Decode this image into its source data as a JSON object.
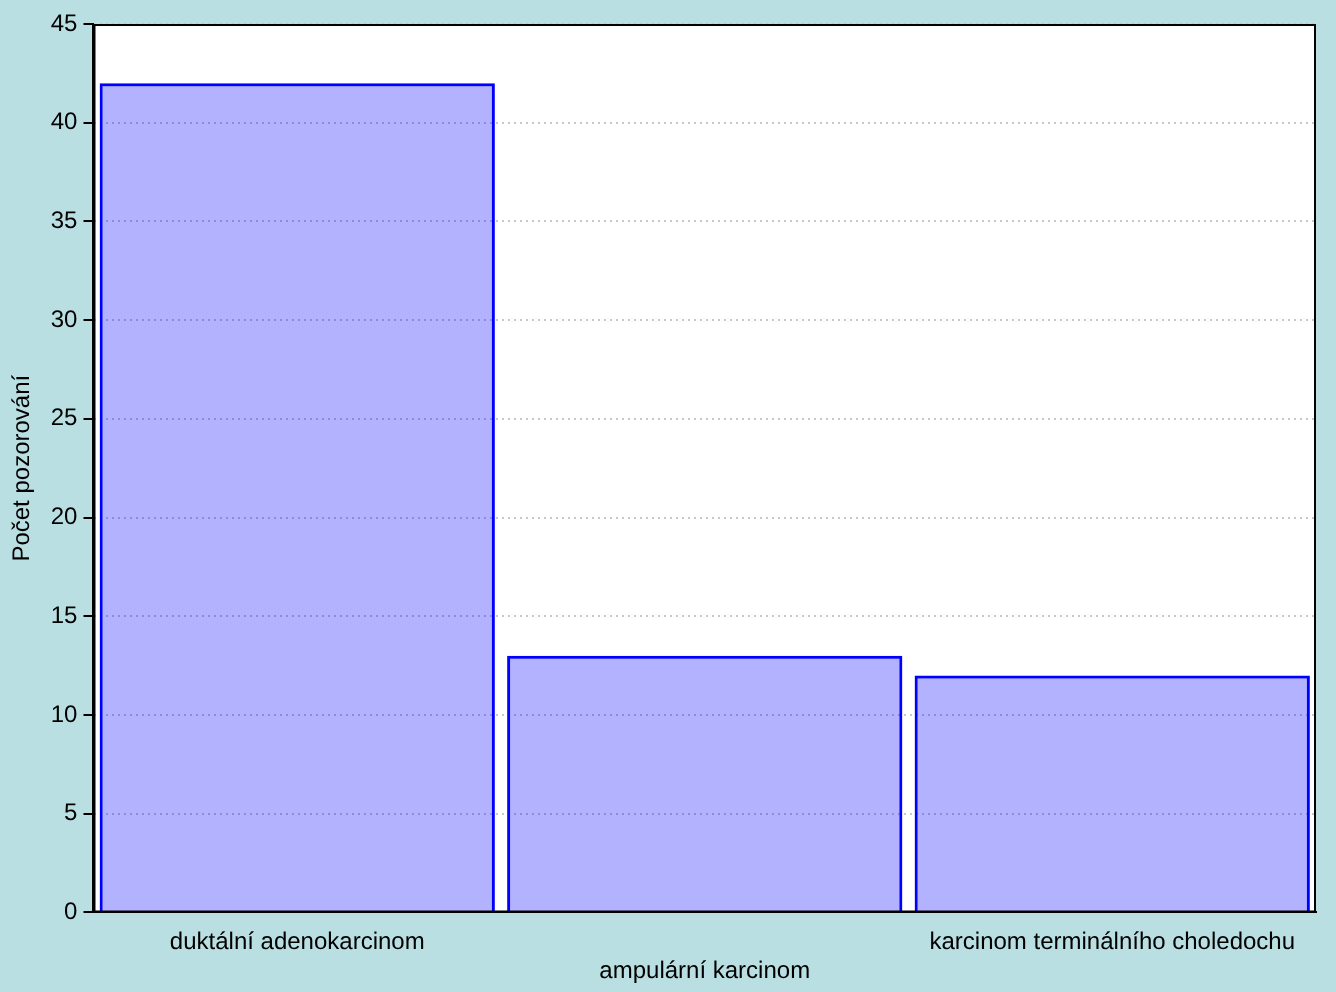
{
  "chart_data": {
    "type": "bar",
    "ylabel": "Počet pozorování",
    "categories": [
      "duktální adenokarcinom",
      "ampulární karcinom",
      "karcinom terminálního choledochu"
    ],
    "values": [
      42,
      13,
      12
    ],
    "color": "#0000ff",
    "ylim": [
      0,
      45
    ],
    "yticks": [
      0,
      5,
      10,
      15,
      20,
      25,
      30,
      35,
      40,
      45
    ],
    "grid": "y"
  }
}
